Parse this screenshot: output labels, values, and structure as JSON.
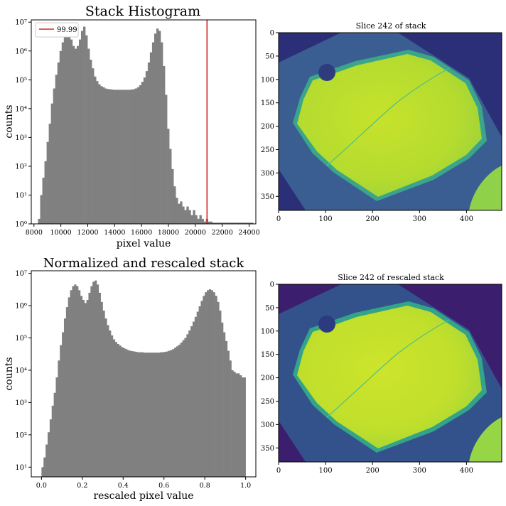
{
  "chart_data": [
    {
      "type": "bar",
      "title": "Stack Histogram",
      "xlabel": "pixel value",
      "ylabel": "counts",
      "yscale": "log",
      "xlim": [
        7800,
        24500
      ],
      "ylim": [
        1,
        12000000
      ],
      "xticks": [
        "8000",
        "10000",
        "12000",
        "14000",
        "16000",
        "18000",
        "20000",
        "22000",
        "24000"
      ],
      "yticks": [
        "10⁰",
        "10¹",
        "10²",
        "10³",
        "10⁴",
        "10⁵",
        "10⁶",
        "10⁷"
      ],
      "bar_color": "#808080",
      "legend": {
        "position": "top-left",
        "entries": [
          "99.99"
        ]
      },
      "vline": {
        "x": 20870,
        "color": "#d62728",
        "label": "99.99"
      },
      "bin_start": 8300,
      "bin_width": 160,
      "counts": [
        1.5,
        10,
        40,
        150,
        700,
        3000,
        15000,
        50000,
        150000,
        400000,
        1000000,
        2000000,
        4000000,
        5000000,
        3500000,
        2500000,
        1500000,
        1200000,
        1500000,
        2500000,
        5000000,
        7000000,
        3500000,
        1200000,
        500000,
        250000,
        130000,
        90000,
        70000,
        60000,
        55000,
        50000,
        48000,
        47000,
        46000,
        45000,
        45000,
        45000,
        45000,
        45000,
        45000,
        45000,
        45000,
        46000,
        47000,
        50000,
        55000,
        65000,
        85000,
        120000,
        200000,
        400000,
        900000,
        2000000,
        4000000,
        6000000,
        5000000,
        2000000,
        300000,
        30000,
        2000,
        400,
        80,
        20,
        8,
        5,
        6,
        4,
        3,
        4,
        3,
        2,
        3,
        2,
        1.5,
        2,
        1.5,
        1.2,
        1.5,
        1.2,
        1.2,
        1.1,
        1.1,
        1.1,
        1.1,
        1.1,
        1.1,
        1.1,
        1.1,
        1.1,
        1.1,
        1.1,
        1.1,
        1.1,
        1.1,
        1.1,
        1.1,
        1.1,
        1.1,
        1.1
      ]
    },
    {
      "type": "heatmap",
      "title": "Slice 242 of stack",
      "xticks": [
        "0",
        "100",
        "200",
        "300",
        "400"
      ],
      "yticks": [
        "0",
        "50",
        "100",
        "150",
        "200",
        "250",
        "300",
        "350"
      ],
      "xlim": [
        0,
        475
      ],
      "ylim": [
        0,
        380
      ]
    },
    {
      "type": "bar",
      "title": "Normalized and rescaled stack",
      "xlabel": "rescaled pixel value",
      "ylabel": "counts",
      "yscale": "log",
      "xlim": [
        -0.05,
        1.05
      ],
      "ylim": [
        5,
        12000000
      ],
      "xticks": [
        "0.0",
        "0.2",
        "0.4",
        "0.6",
        "0.8",
        "1.0"
      ],
      "yticks": [
        "10¹",
        "10²",
        "10³",
        "10⁴",
        "10⁵",
        "10⁶",
        "10⁷"
      ],
      "bar_color": "#808080",
      "bin_start": 0.0,
      "bin_width": 0.01,
      "counts": [
        10,
        20,
        50,
        120,
        300,
        800,
        2000,
        6000,
        20000,
        60000,
        150000,
        400000,
        900000,
        1800000,
        3000000,
        4000000,
        4500000,
        4000000,
        3000000,
        2000000,
        1500000,
        1200000,
        1500000,
        2500000,
        4000000,
        5500000,
        6000000,
        4500000,
        2500000,
        1300000,
        700000,
        400000,
        250000,
        170000,
        120000,
        90000,
        75000,
        65000,
        58000,
        52000,
        48000,
        45000,
        42000,
        40000,
        39000,
        38000,
        37000,
        36000,
        36000,
        36000,
        35000,
        35000,
        35000,
        35000,
        35000,
        35000,
        35000,
        35000,
        36000,
        36000,
        37000,
        38000,
        40000,
        42000,
        45000,
        50000,
        55000,
        62000,
        72000,
        85000,
        100000,
        130000,
        170000,
        230000,
        320000,
        450000,
        650000,
        950000,
        1400000,
        2000000,
        2600000,
        3000000,
        3200000,
        3000000,
        2600000,
        2000000,
        1300000,
        700000,
        300000,
        150000,
        80000,
        40000,
        20000,
        10000,
        9000,
        8000,
        8000,
        7000,
        6000,
        6000
      ]
    },
    {
      "type": "heatmap",
      "title": "Slice 242 of rescaled stack",
      "xticks": [
        "0",
        "100",
        "200",
        "300",
        "400"
      ],
      "yticks": [
        "0",
        "50",
        "100",
        "150",
        "200",
        "250",
        "300",
        "350"
      ],
      "xlim": [
        0,
        475
      ],
      "ylim": [
        0,
        380
      ]
    }
  ],
  "colors": {
    "background_dark": "#2b2f78",
    "background_mid": "#3b5e92",
    "crystal": "#b9de2c",
    "edge": "#36a88a",
    "accent_line": "#d62728"
  }
}
